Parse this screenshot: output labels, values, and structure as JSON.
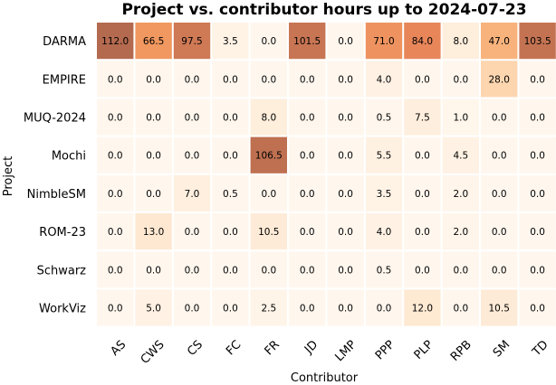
{
  "chart_data": {
    "type": "heatmap",
    "title": "Project vs. contributor hours up to 2024-07-23",
    "xlabel": "Contributor",
    "ylabel": "Project",
    "x_categories": [
      "AS",
      "CWS",
      "CS",
      "FC",
      "FR",
      "JD",
      "LMP",
      "PPP",
      "PLP",
      "RPB",
      "SM",
      "TD"
    ],
    "y_categories": [
      "DARMA",
      "EMPIRE",
      "MUQ-2024",
      "Mochi",
      "NimbleSM",
      "ROM-23",
      "Schwarz",
      "WorkViz"
    ],
    "values": [
      [
        112.0,
        66.5,
        97.5,
        3.5,
        0.0,
        101.5,
        0.0,
        71.0,
        84.0,
        8.0,
        47.0,
        103.5
      ],
      [
        0.0,
        0.0,
        0.0,
        0.0,
        0.0,
        0.0,
        0.0,
        4.0,
        0.0,
        0.0,
        28.0,
        0.0
      ],
      [
        0.0,
        0.0,
        0.0,
        0.0,
        8.0,
        0.0,
        0.0,
        0.5,
        7.5,
        1.0,
        0.0,
        0.0
      ],
      [
        0.0,
        0.0,
        0.0,
        0.0,
        106.5,
        0.0,
        0.0,
        5.5,
        0.0,
        4.5,
        0.0,
        0.0
      ],
      [
        0.0,
        0.0,
        7.0,
        0.5,
        0.0,
        0.0,
        0.0,
        3.5,
        0.0,
        2.0,
        0.0,
        0.0
      ],
      [
        0.0,
        13.0,
        0.0,
        0.0,
        10.5,
        0.0,
        0.0,
        4.0,
        0.0,
        2.0,
        0.0,
        0.0
      ],
      [
        0.0,
        0.0,
        0.0,
        0.0,
        0.0,
        0.0,
        0.0,
        0.5,
        0.0,
        0.0,
        0.0,
        0.0
      ],
      [
        0.0,
        5.0,
        0.0,
        0.0,
        2.5,
        0.0,
        0.0,
        0.0,
        12.0,
        0.0,
        10.5,
        0.0
      ]
    ],
    "value_format": "one decimal",
    "colormap": [
      "#fff7ee",
      "#fdd6b0",
      "#f5a364",
      "#e8865a",
      "#b46a4f"
    ],
    "grid": false,
    "legend": "none"
  }
}
